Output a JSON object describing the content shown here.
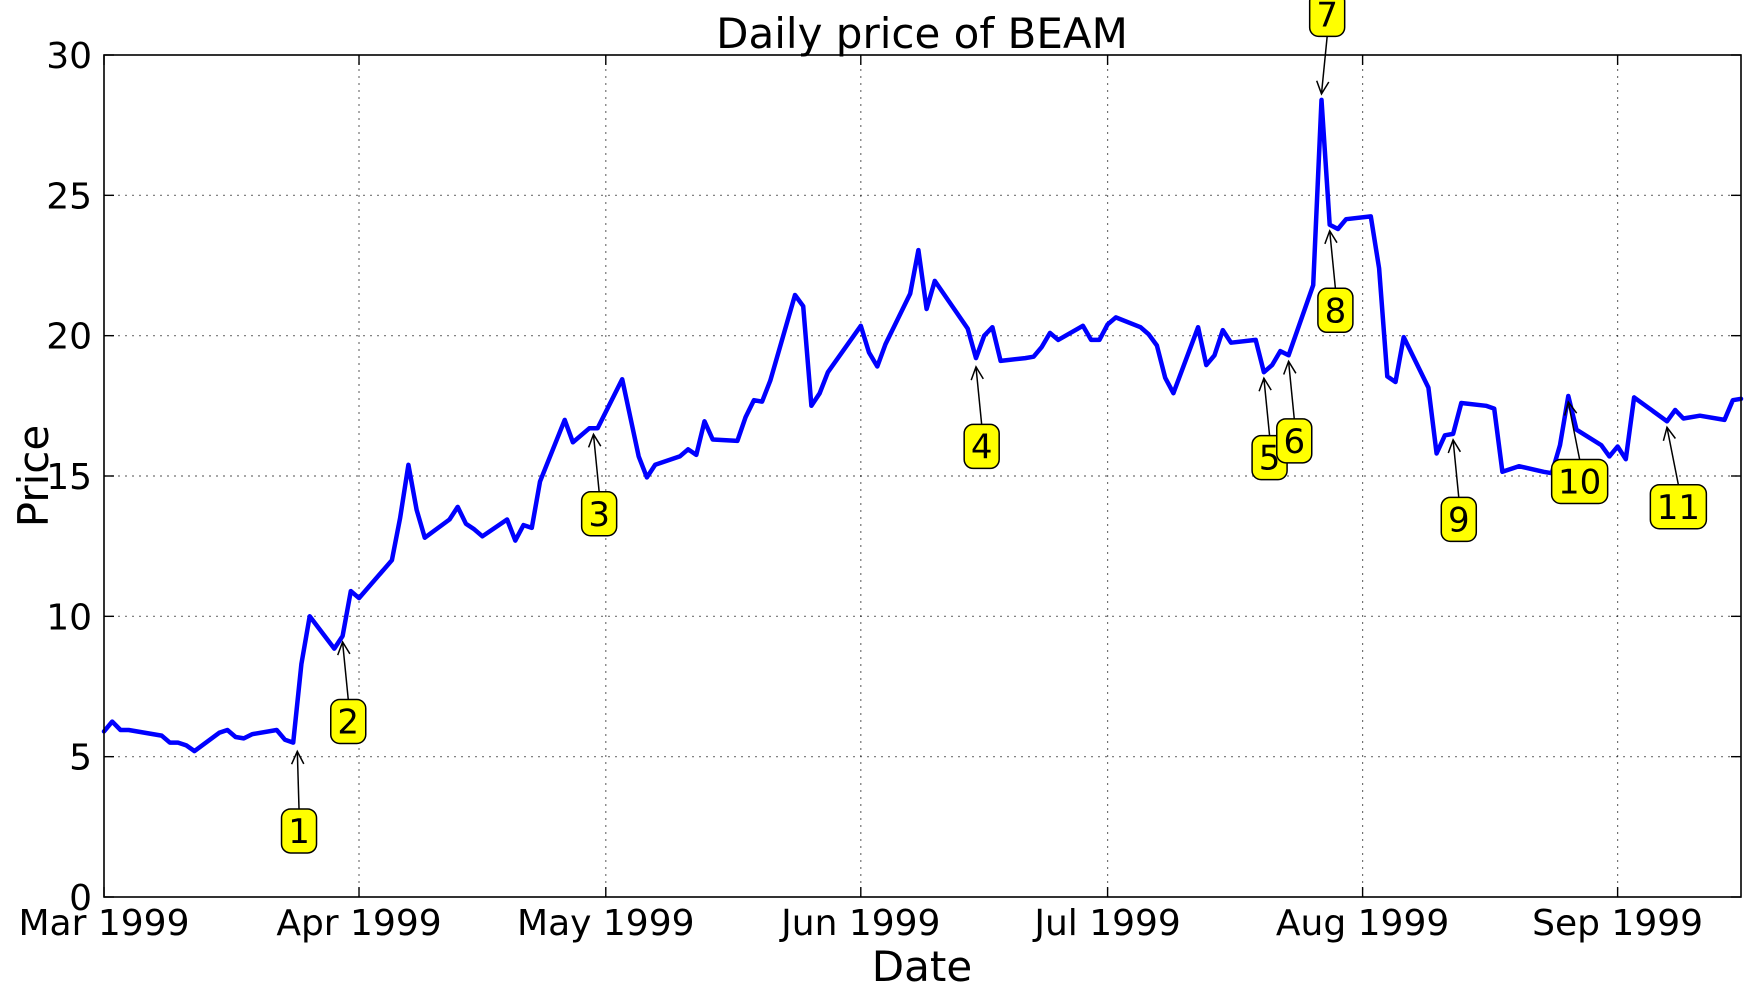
{
  "colors": {
    "line": "#0000ff",
    "annotation_fill": "#ffff00",
    "frame": "#000000"
  },
  "chart_data": {
    "type": "line",
    "title": "Daily price of BEAM",
    "xlabel": "Date",
    "ylabel": "Price",
    "ylim": [
      0,
      30
    ],
    "yticks": [
      0,
      5,
      10,
      15,
      20,
      25,
      30
    ],
    "xlim_day": [
      0,
      199
    ],
    "xticks": [
      {
        "day": 0,
        "label": "Mar 1999"
      },
      {
        "day": 31,
        "label": "Apr 1999"
      },
      {
        "day": 61,
        "label": "May 1999"
      },
      {
        "day": 92,
        "label": "Jun 1999"
      },
      {
        "day": 122,
        "label": "Jul 1999"
      },
      {
        "day": 153,
        "label": "Aug 1999"
      },
      {
        "day": 184,
        "label": "Sep 1999"
      }
    ],
    "grid": true,
    "series": [
      {
        "name": "BEAM",
        "points": [
          [
            0,
            5.9
          ],
          [
            1,
            6.25
          ],
          [
            2,
            5.95
          ],
          [
            3,
            5.95
          ],
          [
            7,
            5.75
          ],
          [
            8,
            5.5
          ],
          [
            9,
            5.5
          ],
          [
            10,
            5.4
          ],
          [
            11,
            5.2
          ],
          [
            14,
            5.85
          ],
          [
            15,
            5.95
          ],
          [
            16,
            5.7
          ],
          [
            17,
            5.65
          ],
          [
            18,
            5.8
          ],
          [
            21,
            5.95
          ],
          [
            22,
            5.6
          ],
          [
            23,
            5.5
          ],
          [
            24,
            8.3
          ],
          [
            25,
            10.0
          ],
          [
            28,
            8.85
          ],
          [
            29,
            9.3
          ],
          [
            30,
            10.9
          ],
          [
            31,
            10.65
          ],
          [
            35,
            12.0
          ],
          [
            36,
            13.5
          ],
          [
            37,
            15.4
          ],
          [
            38,
            13.8
          ],
          [
            39,
            12.8
          ],
          [
            42,
            13.45
          ],
          [
            43,
            13.9
          ],
          [
            44,
            13.3
          ],
          [
            45,
            13.1
          ],
          [
            46,
            12.85
          ],
          [
            49,
            13.45
          ],
          [
            50,
            12.7
          ],
          [
            51,
            13.25
          ],
          [
            52,
            13.15
          ],
          [
            53,
            14.8
          ],
          [
            56,
            17.0
          ],
          [
            57,
            16.2
          ],
          [
            59,
            16.7
          ],
          [
            60,
            16.7
          ],
          [
            63,
            18.45
          ],
          [
            65,
            15.7
          ],
          [
            66,
            14.95
          ],
          [
            67,
            15.4
          ],
          [
            70,
            15.7
          ],
          [
            71,
            15.95
          ],
          [
            72,
            15.75
          ],
          [
            73,
            16.95
          ],
          [
            74,
            16.3
          ],
          [
            77,
            16.25
          ],
          [
            78,
            17.1
          ],
          [
            79,
            17.7
          ],
          [
            80,
            17.65
          ],
          [
            81,
            18.4
          ],
          [
            84,
            21.45
          ],
          [
            85,
            21.05
          ],
          [
            86,
            17.5
          ],
          [
            87,
            17.95
          ],
          [
            88,
            18.7
          ],
          [
            92,
            20.35
          ],
          [
            93,
            19.4
          ],
          [
            94,
            18.9
          ],
          [
            95,
            19.7
          ],
          [
            98,
            21.5
          ],
          [
            99,
            23.05
          ],
          [
            100,
            20.95
          ],
          [
            101,
            21.95
          ],
          [
            105,
            20.25
          ],
          [
            106,
            19.2
          ],
          [
            107,
            20.0
          ],
          [
            108,
            20.3
          ],
          [
            109,
            19.1
          ],
          [
            112,
            19.2
          ],
          [
            113,
            19.25
          ],
          [
            114,
            19.6
          ],
          [
            115,
            20.1
          ],
          [
            116,
            19.85
          ],
          [
            119,
            20.35
          ],
          [
            120,
            19.85
          ],
          [
            121,
            19.85
          ],
          [
            122,
            20.4
          ],
          [
            123,
            20.65
          ],
          [
            126,
            20.3
          ],
          [
            127,
            20.05
          ],
          [
            128,
            19.65
          ],
          [
            129,
            18.5
          ],
          [
            130,
            17.95
          ],
          [
            133,
            20.3
          ],
          [
            134,
            18.95
          ],
          [
            135,
            19.3
          ],
          [
            136,
            20.2
          ],
          [
            137,
            19.75
          ],
          [
            140,
            19.85
          ],
          [
            141,
            18.7
          ],
          [
            142,
            18.95
          ],
          [
            143,
            19.45
          ],
          [
            144,
            19.3
          ],
          [
            147,
            21.8
          ],
          [
            148,
            28.4
          ],
          [
            149,
            23.95
          ],
          [
            150,
            23.8
          ],
          [
            151,
            24.15
          ],
          [
            154,
            24.25
          ],
          [
            155,
            22.4
          ],
          [
            156,
            18.55
          ],
          [
            157,
            18.35
          ],
          [
            158,
            19.95
          ],
          [
            161,
            18.15
          ],
          [
            162,
            15.8
          ],
          [
            163,
            16.45
          ],
          [
            164,
            16.5
          ],
          [
            165,
            17.6
          ],
          [
            168,
            17.5
          ],
          [
            169,
            17.4
          ],
          [
            170,
            15.15
          ],
          [
            172,
            15.35
          ],
          [
            175,
            15.15
          ],
          [
            176,
            15.1
          ],
          [
            177,
            16.1
          ],
          [
            178,
            17.85
          ],
          [
            179,
            16.65
          ],
          [
            182,
            16.1
          ],
          [
            183,
            15.7
          ],
          [
            184,
            16.05
          ],
          [
            185,
            15.6
          ],
          [
            186,
            17.8
          ],
          [
            190,
            16.95
          ],
          [
            191,
            17.35
          ],
          [
            192,
            17.05
          ],
          [
            194,
            17.15
          ],
          [
            197,
            17.0
          ],
          [
            198,
            17.7
          ],
          [
            199,
            17.75
          ]
        ]
      }
    ],
    "annotations": [
      {
        "label": "1",
        "day": 23.5,
        "price": 5.4
      },
      {
        "label": "2",
        "day": 29,
        "price": 9.3
      },
      {
        "label": "3",
        "day": 59.5,
        "price": 16.7
      },
      {
        "label": "4",
        "day": 106,
        "price": 19.1
      },
      {
        "label": "5",
        "day": 141,
        "price": 18.7
      },
      {
        "label": "6",
        "day": 144,
        "price": 19.3
      },
      {
        "label": "7",
        "day": 148,
        "price": 28.4
      },
      {
        "label": "8",
        "day": 149,
        "price": 23.95
      },
      {
        "label": "9",
        "day": 164,
        "price": 16.5
      },
      {
        "label": "10",
        "day": 178,
        "price": 17.85
      },
      {
        "label": "11",
        "day": 190,
        "price": 16.95
      }
    ]
  }
}
